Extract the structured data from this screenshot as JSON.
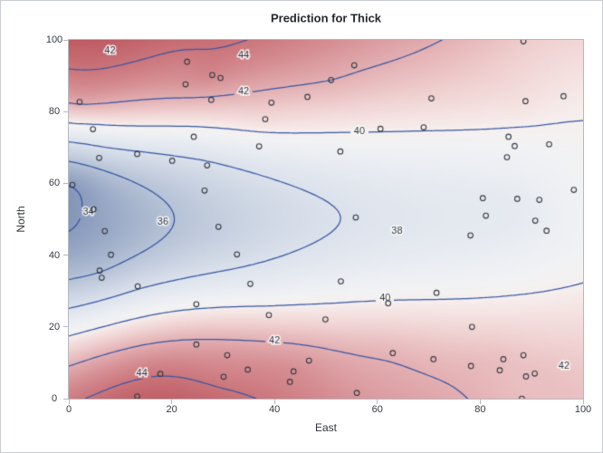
{
  "title": "Prediction for Thick",
  "axes": {
    "x": {
      "label": "East",
      "min": 0,
      "max": 100,
      "ticks": [
        0,
        20,
        40,
        60,
        80,
        100
      ]
    },
    "y": {
      "label": "North",
      "min": 0,
      "max": 100,
      "ticks": [
        0,
        20,
        40,
        60,
        80,
        100
      ]
    }
  },
  "chart_data": {
    "type": "heatmap",
    "subtype": "filled-contour-with-scatter",
    "title": "Prediction for Thick",
    "xlabel": "East",
    "ylabel": "North",
    "xlim": [
      0,
      100
    ],
    "ylim": [
      0,
      100
    ],
    "grid": false,
    "legend": "none",
    "contour_levels": [
      34,
      36,
      38,
      40,
      42,
      44
    ],
    "contour_labels": [
      {
        "value": "42",
        "east": 8.0,
        "north": 97.0
      },
      {
        "value": "44",
        "east": 34.0,
        "north": 95.8
      },
      {
        "value": "42",
        "east": 34.0,
        "north": 85.5
      },
      {
        "value": "40",
        "east": 56.5,
        "north": 74.5
      },
      {
        "value": "34",
        "east": 3.8,
        "north": 52.0
      },
      {
        "value": "36",
        "east": 18.3,
        "north": 49.3
      },
      {
        "value": "38",
        "east": 63.8,
        "north": 46.6
      },
      {
        "value": "40",
        "east": 61.5,
        "north": 28.0
      },
      {
        "value": "42",
        "east": 40.0,
        "north": 16.2
      },
      {
        "value": "44",
        "east": 14.2,
        "north": 7.2
      },
      {
        "value": "42",
        "east": 96.3,
        "north": 9.0
      }
    ],
    "points_columns": [
      "East",
      "North",
      "Thick"
    ],
    "points": [
      [
        0.7,
        59.6,
        34.1
      ],
      [
        2.1,
        82.7,
        42.2
      ],
      [
        4.7,
        75.1,
        39.5
      ],
      [
        4.8,
        52.8,
        34.3
      ],
      [
        5.9,
        67.1,
        37.0
      ],
      [
        6.0,
        35.7,
        35.9
      ],
      [
        6.4,
        33.7,
        36.4
      ],
      [
        7.0,
        46.7,
        34.6
      ],
      [
        8.2,
        40.1,
        35.4
      ],
      [
        13.3,
        0.6,
        44.7
      ],
      [
        13.3,
        68.2,
        37.8
      ],
      [
        13.4,
        31.3,
        37.8
      ],
      [
        17.8,
        6.9,
        43.9
      ],
      [
        20.1,
        66.3,
        37.7
      ],
      [
        22.7,
        87.6,
        42.8
      ],
      [
        23.0,
        93.9,
        43.6
      ],
      [
        24.3,
        73.0,
        39.3
      ],
      [
        24.8,
        15.1,
        42.3
      ],
      [
        24.8,
        26.3,
        39.7
      ],
      [
        26.4,
        58.0,
        36.9
      ],
      [
        26.9,
        65.0,
        37.8
      ],
      [
        27.7,
        83.3,
        41.8
      ],
      [
        27.9,
        90.2,
        43.3
      ],
      [
        29.1,
        47.9,
        36.7
      ],
      [
        29.5,
        89.4,
        43.0
      ],
      [
        30.1,
        6.1,
        43.6
      ],
      [
        30.8,
        12.1,
        42.8
      ],
      [
        32.7,
        40.2,
        37.5
      ],
      [
        34.8,
        8.1,
        43.3
      ],
      [
        35.3,
        32.0,
        38.8
      ],
      [
        37.0,
        70.3,
        39.2
      ],
      [
        38.2,
        77.9,
        40.7
      ],
      [
        38.9,
        23.3,
        40.5
      ],
      [
        39.4,
        82.5,
        41.4
      ],
      [
        43.0,
        4.7,
        43.3
      ],
      [
        43.7,
        7.6,
        43.1
      ],
      [
        46.4,
        84.1,
        41.5
      ],
      [
        46.7,
        10.6,
        42.6
      ],
      [
        49.9,
        22.1,
        40.7
      ],
      [
        51.0,
        88.8,
        42.0
      ],
      [
        52.8,
        68.9,
        39.3
      ],
      [
        52.9,
        32.7,
        39.2
      ],
      [
        55.5,
        92.9,
        42.2
      ],
      [
        55.8,
        50.5,
        38.1
      ],
      [
        56.0,
        1.6,
        42.7
      ],
      [
        60.6,
        75.2,
        40.1
      ],
      [
        62.1,
        26.6,
        40.1
      ],
      [
        63.0,
        12.7,
        41.8
      ],
      [
        69.0,
        75.6,
        40.1
      ],
      [
        70.5,
        83.7,
        40.9
      ],
      [
        70.9,
        11.0,
        41.7
      ],
      [
        71.5,
        29.5,
        39.8
      ],
      [
        78.1,
        45.5,
        38.7
      ],
      [
        78.2,
        9.1,
        41.7
      ],
      [
        78.4,
        20.0,
        40.8
      ],
      [
        80.5,
        55.9,
        38.7
      ],
      [
        81.1,
        51.0,
        38.6
      ],
      [
        83.8,
        7.9,
        41.6
      ],
      [
        84.5,
        11.0,
        41.5
      ],
      [
        85.2,
        67.3,
        39.4
      ],
      [
        85.5,
        73.0,
        39.8
      ],
      [
        86.7,
        70.4,
        39.6
      ],
      [
        87.2,
        55.7,
        38.8
      ],
      [
        88.1,
        0.0,
        41.6
      ],
      [
        88.4,
        12.1,
        41.3
      ],
      [
        88.4,
        99.6,
        41.2
      ],
      [
        88.8,
        82.9,
        40.5
      ],
      [
        88.9,
        6.2,
        41.5
      ],
      [
        90.6,
        7.0,
        41.5
      ],
      [
        90.7,
        49.6,
        38.9
      ],
      [
        91.5,
        55.4,
        39.0
      ],
      [
        92.9,
        46.8,
        39.1
      ],
      [
        93.4,
        70.9,
        39.7
      ],
      [
        96.2,
        84.3,
        40.3
      ],
      [
        98.2,
        58.2,
        39.5
      ]
    ],
    "colors": {
      "contour_line": "#3556a4",
      "marker_stroke": "#363b43",
      "label_text": "#2f333a",
      "axis_line": "#b4b9c0",
      "tick_text": "#363a41",
      "title_text": "#25282e",
      "ramp": [
        {
          "v": 33.0,
          "c": "#7386ad"
        },
        {
          "v": 34.0,
          "c": "#8a9bbd"
        },
        {
          "v": 35.0,
          "c": "#a1b0ca"
        },
        {
          "v": 36.0,
          "c": "#b6c2d6"
        },
        {
          "v": 37.0,
          "c": "#cad3e2"
        },
        {
          "v": 38.0,
          "c": "#dce2ec"
        },
        {
          "v": 39.0,
          "c": "#eaedf2"
        },
        {
          "v": 39.6,
          "c": "#f1f2f4"
        },
        {
          "v": 40.0,
          "c": "#f6f0ef"
        },
        {
          "v": 40.5,
          "c": "#f4e1e0"
        },
        {
          "v": 41.0,
          "c": "#f0d2d2"
        },
        {
          "v": 42.0,
          "c": "#e3afb2"
        },
        {
          "v": 43.0,
          "c": "#d69095"
        },
        {
          "v": 44.0,
          "c": "#ca757b"
        },
        {
          "v": 45.0,
          "c": "#bf5c64"
        },
        {
          "v": 46.0,
          "c": "#b54b54"
        }
      ]
    }
  }
}
